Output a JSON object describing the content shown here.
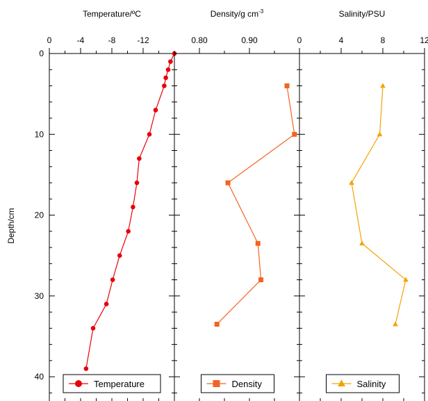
{
  "chart_data": {
    "type": "line",
    "shared_y": {
      "label": "Depth/cm",
      "lim": [
        0,
        43
      ],
      "inverted": true,
      "ticks": [
        0,
        10,
        20,
        30,
        40
      ],
      "tick_labels": [
        "0",
        "10",
        "20",
        "30",
        "40"
      ]
    },
    "panels": [
      {
        "title": "Temperature/ºC",
        "xlim": [
          0,
          -16
        ],
        "x_ticks": [
          0,
          -4,
          -8,
          -12
        ],
        "x_tick_labels": [
          "0",
          "-4",
          "-8",
          "-12"
        ],
        "series": [
          {
            "name": "Temperature",
            "color": "#e8000b",
            "marker": "circle",
            "x": [
              -16,
              -15.5,
              -15.2,
              -14.9,
              -14.7,
              -13.6,
              -12.8,
              -11.5,
              -11.2,
              -10.7,
              -10.1,
              -9.0,
              -8.1,
              -7.3,
              -5.6,
              -4.7
            ],
            "y": [
              0,
              1,
              2,
              3,
              4,
              7,
              10,
              13,
              16,
              19,
              22,
              25,
              28,
              31,
              34,
              39
            ]
          }
        ]
      },
      {
        "title": "Density/g cm",
        "title_sup": "-3",
        "xlim": [
          0.75,
          1.0
        ],
        "x_ticks": [
          0.8,
          0.9
        ],
        "x_tick_labels": [
          "0.80",
          "0.90"
        ],
        "series": [
          {
            "name": "Density",
            "color": "#f26322",
            "marker": "square",
            "x": [
              0.975,
              0.99,
              0.857,
              0.917,
              0.923,
              0.835
            ],
            "y": [
              4,
              10,
              16,
              23.5,
              28,
              33.5
            ]
          }
        ]
      },
      {
        "title": "Salinity/PSU",
        "xlim": [
          0,
          12
        ],
        "x_ticks": [
          0,
          4,
          8,
          12
        ],
        "x_tick_labels": [
          "0",
          "4",
          "8",
          "12"
        ],
        "series": [
          {
            "name": "Salinity",
            "color": "#f4a300",
            "marker": "triangle",
            "x": [
              8.0,
              7.7,
              5.0,
              6.0,
              10.2,
              9.2
            ],
            "y": [
              4,
              10,
              16,
              23.5,
              28,
              33.5
            ]
          }
        ]
      }
    ]
  }
}
